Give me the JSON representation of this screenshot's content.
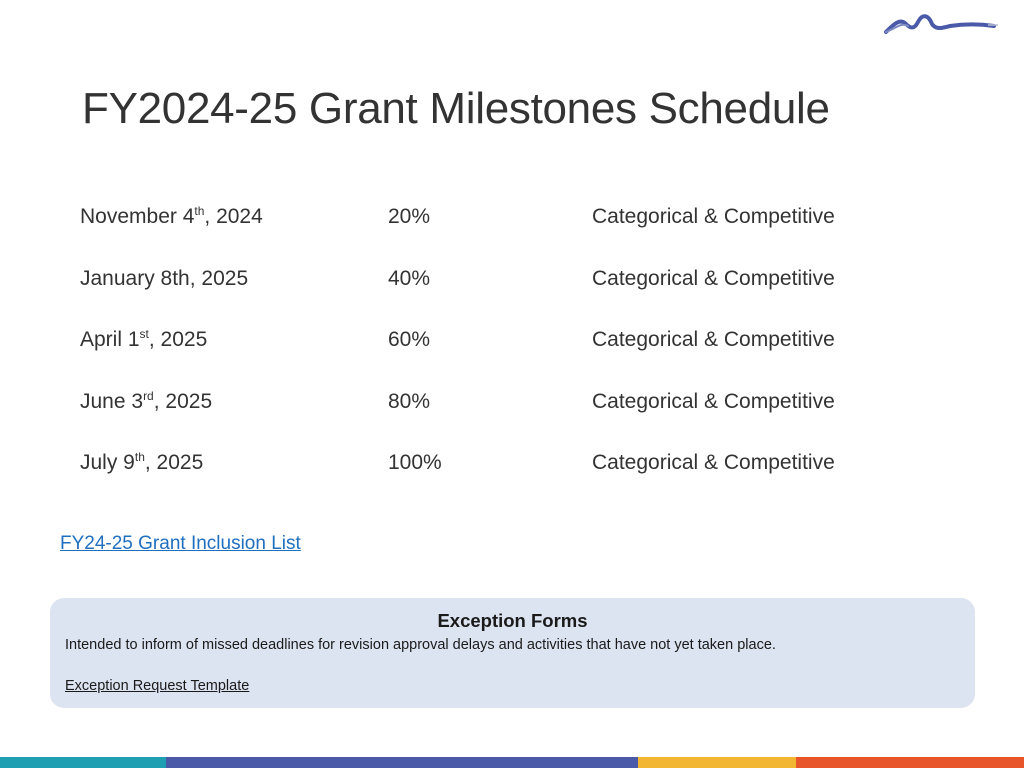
{
  "slide": {
    "title": "FY2024-25 Grant Milestones Schedule"
  },
  "logo": {
    "icon": "mountain-logo-icon",
    "color": "#4a5aa8"
  },
  "schedule": {
    "rows": [
      {
        "date_prefix": "November 4",
        "date_sup": "th",
        "date_suffix": ", 2024",
        "percent": "20%",
        "type": "Categorical & Competitive"
      },
      {
        "date_prefix": "January 8th, 2025",
        "date_sup": "",
        "date_suffix": "",
        "percent": "40%",
        "type": "Categorical & Competitive"
      },
      {
        "date_prefix": "April 1",
        "date_sup": "st",
        "date_suffix": ", 2025",
        "percent": "60%",
        "type": "Categorical & Competitive"
      },
      {
        "date_prefix": "June 3",
        "date_sup": "rd",
        "date_suffix": ", 2025",
        "percent": "80%",
        "type": "Categorical & Competitive"
      },
      {
        "date_prefix": "July 9",
        "date_sup": "th",
        "date_suffix": ", 2025",
        "percent": "100%",
        "type": "Categorical & Competitive"
      }
    ]
  },
  "links": {
    "inclusion_list": "FY24-25 Grant Inclusion List"
  },
  "exception": {
    "title": "Exception Forms",
    "description": "Intended to inform of missed deadlines for revision approval delays and activities that have not yet taken place.",
    "template_link": "Exception Request Template"
  },
  "colors": {
    "link": "#1f6fbf",
    "box_background": "#dde4f1",
    "footer": [
      "#1e9fb2",
      "#4a5aa8",
      "#f2b632",
      "#e8552b"
    ]
  }
}
